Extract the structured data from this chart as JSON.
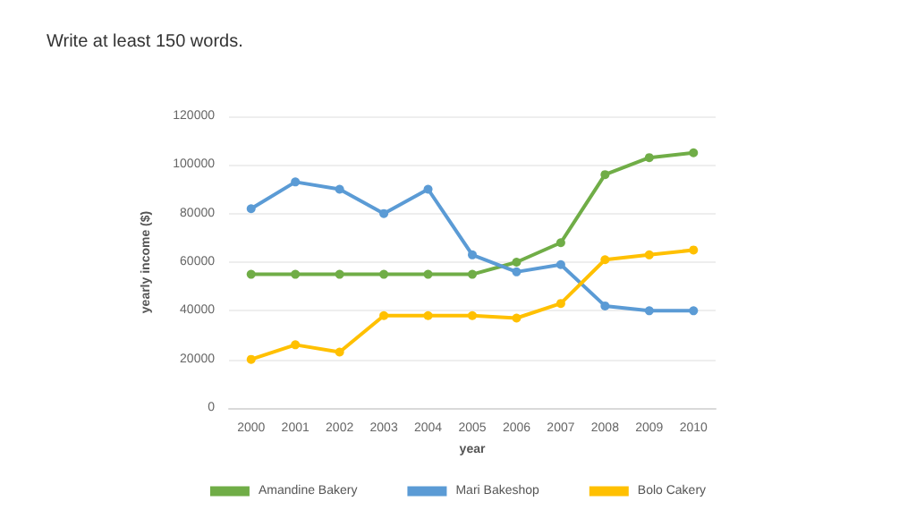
{
  "chart_data": {
    "type": "line",
    "xlabel": "year",
    "ylabel": "yearly income ($)",
    "annotations": [
      "Write at least 150 words."
    ],
    "categories": [
      "2000",
      "2001",
      "2002",
      "2003",
      "2004",
      "2005",
      "2006",
      "2007",
      "2008",
      "2009",
      "2010"
    ],
    "series": [
      {
        "name": "Amandine Bakery",
        "color": "#70ad47",
        "values": [
          55000,
          55000,
          55000,
          55000,
          55000,
          55000,
          60000,
          68000,
          96000,
          103000,
          105000
        ]
      },
      {
        "name": "Mari Bakeshop",
        "color": "#5b9bd5",
        "values": [
          82000,
          93000,
          90000,
          80000,
          90000,
          63000,
          56000,
          59000,
          42000,
          40000,
          40000
        ]
      },
      {
        "name": "Bolo Cakery",
        "color": "#ffc000",
        "values": [
          20000,
          26000,
          23000,
          38000,
          38000,
          38000,
          37000,
          43000,
          61000,
          63000,
          65000
        ]
      }
    ],
    "ylim": [
      0,
      120000
    ],
    "yticks": [
      0,
      20000,
      40000,
      60000,
      80000,
      100000,
      120000
    ],
    "grid": "y",
    "legend": "bottom",
    "marker": "circle",
    "line_style": "solid"
  }
}
